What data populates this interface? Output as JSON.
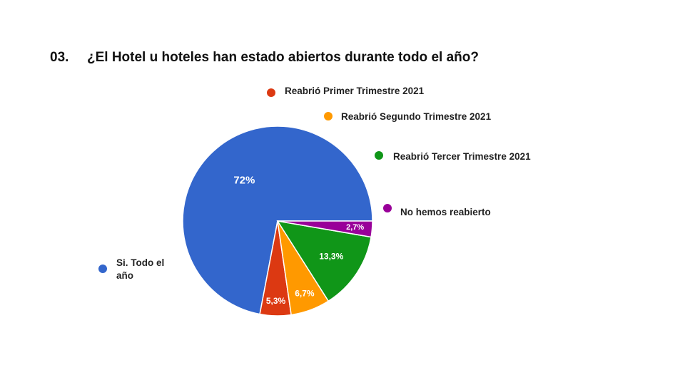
{
  "page": {
    "number": "03.",
    "question": "¿El Hotel u hoteles han estado abiertos durante todo el año?"
  },
  "chart_data": {
    "type": "pie",
    "title": "",
    "start_angle_deg": 0,
    "direction": "counterclockwise",
    "slices": [
      {
        "label": "Si. Todo el año",
        "label_lines": [
          "Si. Todo el",
          "año"
        ],
        "value": 72,
        "display": "72%",
        "color": "#3366cc"
      },
      {
        "label": "Reabrió Primer Trimestre 2021",
        "label_lines": [
          "Reabrió Primer Trimestre 2021"
        ],
        "value": 5.3,
        "display": "5,3%",
        "color": "#dc3912"
      },
      {
        "label": "Reabrió Segundo Trimestre 2021",
        "label_lines": [
          "Reabrió Segundo Trimestre 2021"
        ],
        "value": 6.7,
        "display": "6,7%",
        "color": "#ff9900"
      },
      {
        "label": "Reabrió Tercer Trimestre 2021",
        "label_lines": [
          "Reabrió Tercer Trimestre 2021"
        ],
        "value": 13.3,
        "display": "13,3%",
        "color": "#109618"
      },
      {
        "label": "No hemos reabierto",
        "label_lines": [
          "No hemos reabierto"
        ],
        "value": 2.7,
        "display": "2,7%",
        "color": "#990099"
      }
    ]
  }
}
